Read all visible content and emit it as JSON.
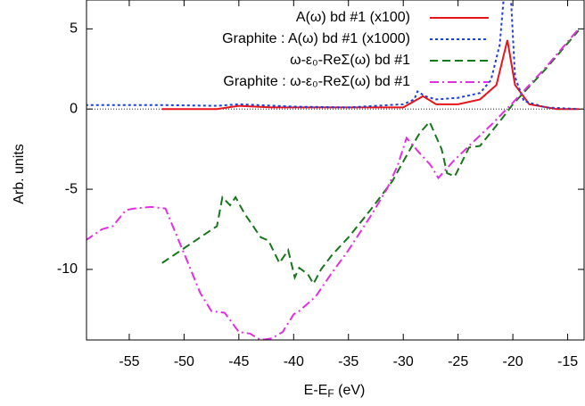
{
  "chart_data": {
    "type": "line",
    "xlabel": [
      "E-E",
      "F",
      " (eV)"
    ],
    "ylabel": "Arb. units",
    "xlim": [
      -58.9,
      -13.5
    ],
    "ylim": [
      -14.4,
      6.8
    ],
    "xticks": [
      -55,
      -50,
      -45,
      -40,
      -35,
      -30,
      -25,
      -20,
      -15
    ],
    "yticks": [
      -10,
      -5,
      0,
      5
    ],
    "legend": "upper right",
    "series": [
      {
        "name": "A(ω) bd #1 (x100)",
        "color": "#e8141c",
        "dash": "solid",
        "x": [
          -52,
          -47,
          -45,
          -42,
          -35,
          -30,
          -28.2,
          -27,
          -25,
          -23,
          -21.5,
          -20.5,
          -19.8,
          -18.5,
          -16,
          -14
        ],
        "values": [
          0,
          0,
          0.2,
          0.1,
          0.1,
          0.1,
          0.8,
          0.3,
          0.3,
          0.6,
          1.5,
          4.3,
          1.5,
          0.3,
          0,
          0
        ]
      },
      {
        "name": "Graphite : A(ω) bd #1 (x1000)",
        "color": "#1f3fd8",
        "dash": "dotted",
        "x": [
          -59,
          -52,
          -47,
          -45,
          -40,
          -35,
          -30,
          -29,
          -28.7,
          -28,
          -27,
          -25,
          -23,
          -22,
          -21.2,
          -20.8,
          -20.2,
          -19.8,
          -19,
          -17,
          -14
        ],
        "values": [
          0.25,
          0.25,
          0.2,
          0.3,
          0.15,
          0.1,
          0.3,
          0.6,
          1.1,
          0.8,
          0.6,
          0.7,
          1.0,
          1.8,
          4,
          7.2,
          7.2,
          2,
          0.5,
          0.1,
          0
        ]
      },
      {
        "name": "ω-ε₀-ReΣ(ω) bd #1",
        "color": "#16761a",
        "dash": "dashed",
        "x": [
          -52,
          -47,
          -46.5,
          -45.8,
          -45.3,
          -44.5,
          -43,
          -42.3,
          -41.3,
          -40.5,
          -39.9,
          -39.5,
          -38.7,
          -38.2,
          -37.5,
          -36.5,
          -35,
          -33,
          -31,
          -29.2,
          -28.5,
          -27.6,
          -26.5,
          -26,
          -25.3,
          -24,
          -23,
          -21,
          -20,
          -17,
          -14
        ],
        "values": [
          -9.6,
          -7.3,
          -5.5,
          -6,
          -5.5,
          -6.5,
          -8,
          -8.2,
          -9.6,
          -8.8,
          -10.5,
          -9.9,
          -10.3,
          -10.9,
          -10,
          -9.1,
          -8,
          -6.3,
          -4.5,
          -2.3,
          -1.5,
          -0.8,
          -2.5,
          -4,
          -4.2,
          -2.4,
          -2.3,
          -0.6,
          0.3,
          2.5,
          4.9
        ]
      },
      {
        "name": "Graphite : ω-ε₀-ReΣ(ω) bd #1",
        "color": "#e22fe0",
        "dash": "dashdot",
        "x": [
          -59,
          -57.5,
          -56.5,
          -55.3,
          -54.5,
          -53,
          -51.7,
          -50,
          -48.5,
          -47.5,
          -46.3,
          -45,
          -44,
          -43,
          -42,
          -41,
          -40,
          -39.5,
          -38,
          -36.5,
          -35,
          -33,
          -31.5,
          -30.5,
          -29.7,
          -28.7,
          -27.5,
          -26.8,
          -25.5,
          -24,
          -22,
          -20,
          -17,
          -14
        ],
        "values": [
          -8.2,
          -7.5,
          -7.3,
          -6.3,
          -6.2,
          -6.1,
          -6.2,
          -9,
          -11.5,
          -12.6,
          -12.7,
          -13.9,
          -14,
          -14.4,
          -14.3,
          -13.9,
          -12.8,
          -12.6,
          -11.7,
          -10.2,
          -8.8,
          -6.7,
          -5,
          -3.5,
          -1.8,
          -2.6,
          -3.5,
          -4.3,
          -3.3,
          -2.3,
          -1,
          0.4,
          2.6,
          5
        ]
      }
    ]
  }
}
